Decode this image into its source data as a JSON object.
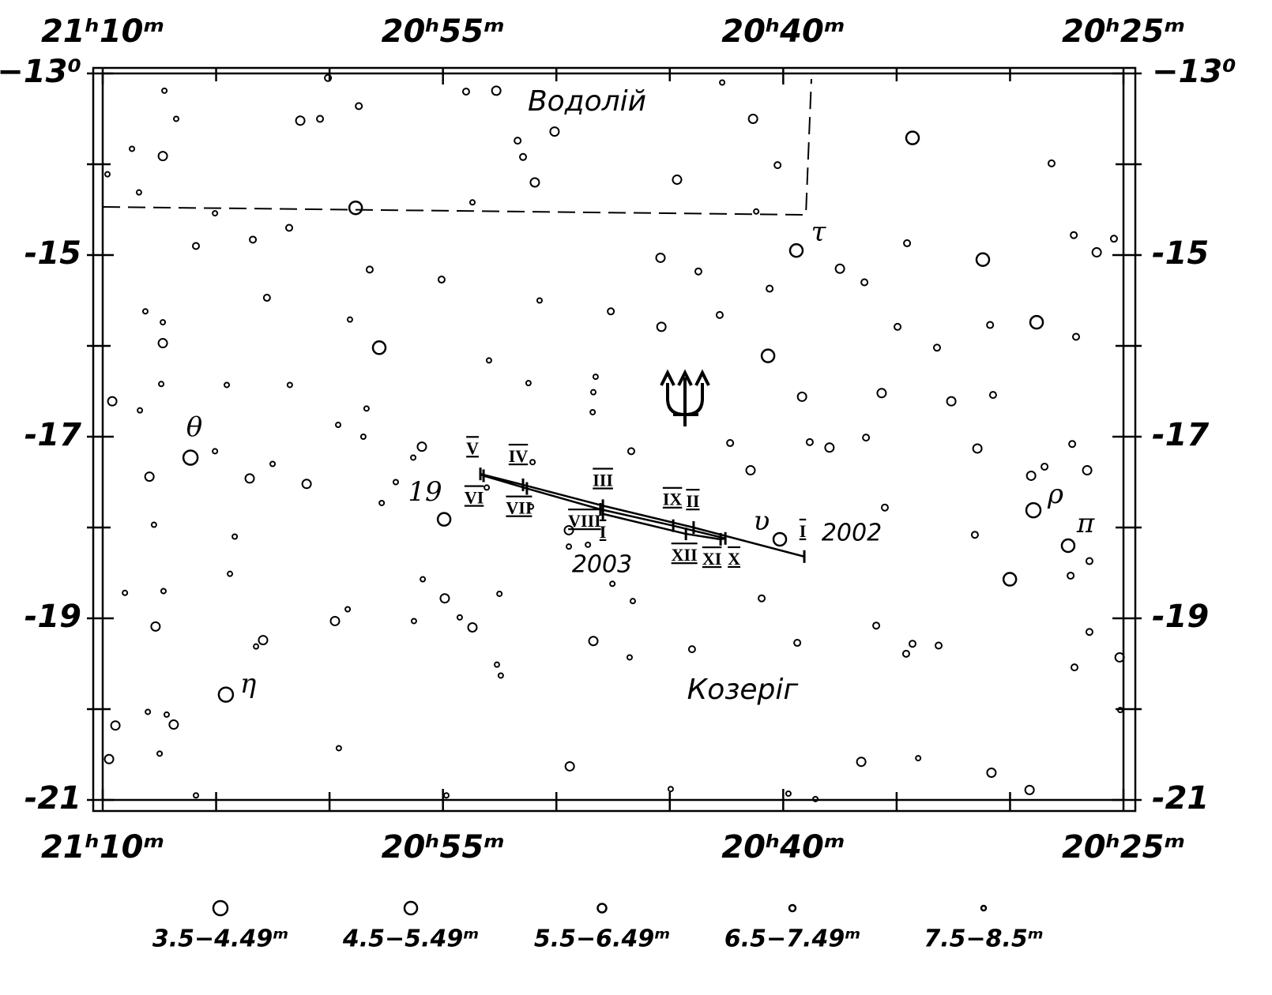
{
  "chart_data": {
    "type": "scatter",
    "xlim": [
      1270,
      1225
    ],
    "ylim": [
      -13,
      -21
    ],
    "xticks": [
      {
        "value": 1270,
        "label": "21ʰ10ᵐ"
      },
      {
        "value": 1255,
        "label": "20ʰ55ᵐ"
      },
      {
        "value": 1240,
        "label": "20ʰ40ᵐ"
      },
      {
        "value": 1225,
        "label": "20ʰ25ᵐ"
      }
    ],
    "xminorticks": [
      1265,
      1260,
      1250,
      1245,
      1235,
      1230
    ],
    "yticks": [
      {
        "value": -13,
        "label": "−13⁰"
      },
      -15,
      -17,
      -19,
      -21
    ],
    "yminorticks": [
      -14,
      -16,
      -18,
      -20
    ],
    "constellations": [
      "Водолій",
      "Козеріг"
    ],
    "star_labels": [
      "θ",
      "η",
      "τ",
      "υ",
      "ρ",
      "π",
      "19"
    ],
    "track_years": [
      "2002",
      "2003"
    ],
    "track": {
      "labels": [
        "I",
        "II",
        "III",
        "IV",
        "V",
        "VI",
        "VII",
        "VIII",
        "IX",
        "X",
        "XI",
        "XII",
        "I"
      ],
      "x": [
        1239.07,
        1243.95,
        1247.95,
        1251.47,
        1253.35,
        1253.21,
        1251.3,
        1248.06,
        1244.85,
        1242.55,
        1242.76,
        1244.29,
        1247.95
      ],
      "values": [
        -18.32,
        -18.0,
        -17.76,
        -17.53,
        -17.41,
        -17.43,
        -17.57,
        -17.8,
        -17.98,
        -18.12,
        -18.13,
        -18.07,
        -17.85
      ]
    },
    "series": [
      {
        "name": "3.5−4.49ᵐ",
        "color": "#000000",
        "x": [
          1266.13,
          1264.57,
          1228.97
        ],
        "values": [
          -17.23,
          -19.84,
          -17.81
        ]
      },
      {
        "name": "4.5−5.49ᵐ",
        "color": "#000000",
        "x": [
          1239.42,
          1227.44,
          1240.15,
          1254.95,
          1234.3,
          1231.2,
          1240.67,
          1257.81,
          1228.83,
          1230.01,
          1258.85
        ],
        "values": [
          -14.95,
          -18.2,
          -18.13,
          -17.91,
          -13.71,
          -15.05,
          -16.11,
          -16.02,
          -15.74,
          -18.57,
          -14.48
        ]
      },
      {
        "name": "5.5−6.49ᵐ",
        "color": "#000000",
        "x": [
          1261.01,
          1235.66,
          1249.45,
          1237.96,
          1245.41,
          1245.37,
          1269.58,
          1269.44,
          1267.35,
          1267.35,
          1267.67,
          1267.94,
          1263.52,
          1262.93,
          1259.76,
          1252.65,
          1261.29,
          1241.33,
          1254.92,
          1253.7,
          1248.37,
          1241.44,
          1239.17,
          1232.59,
          1231.44,
          1226.6,
          1229.07,
          1226.18,
          1236.56,
          1230.82,
          1229.14,
          1269.72,
          1266.87,
          1249.41,
          1244.68,
          1237.5,
          1225.17,
          1255.93,
          1250.08,
          1250.95
        ],
        "values": [
          -17.52,
          -16.52,
          -18.03,
          -17.12,
          -15.03,
          -15.79,
          -16.61,
          -20.18,
          -13.91,
          -15.97,
          -19.09,
          -17.44,
          -17.46,
          -19.24,
          -19.03,
          -13.19,
          -13.52,
          -13.5,
          -18.78,
          -19.1,
          -19.25,
          -17.37,
          -16.56,
          -16.61,
          -17.13,
          -17.37,
          -17.43,
          -14.97,
          -20.58,
          -20.7,
          -20.89,
          -20.55,
          -20.17,
          -20.63,
          -14.17,
          -15.15,
          -19.43,
          -17.11,
          -13.64,
          -14.2
        ]
      },
      {
        "name": "6.5−7.49ᵐ",
        "color": "#000000",
        "x": [
          1260.07,
          1260.42,
          1258.71,
          1253.98,
          1251.71,
          1251.47,
          1240.25,
          1265.89,
          1263.38,
          1261.78,
          1262.76,
          1258.23,
          1255.06,
          1247.6,
          1243.74,
          1242.8,
          1240.6,
          1234.54,
          1236.42,
          1234.96,
          1233.22,
          1230.88,
          1227.09,
          1228.17,
          1227.19,
          1225.42,
          1230.75,
          1236.35,
          1238.83,
          1242.34,
          1246.7,
          1235.52,
          1231.55,
          1227.26,
          1228.48,
          1226.5,
          1227.33,
          1226.5,
          1227.16,
          1235.9,
          1234.3,
          1234.58,
          1233.15,
          1240.95,
          1239.38,
          1244.02
        ],
        "values": [
          -13.05,
          -13.5,
          -13.36,
          -13.2,
          -13.74,
          -13.92,
          -14.01,
          -14.9,
          -14.83,
          -14.7,
          -15.47,
          -15.16,
          -15.27,
          -15.62,
          -15.18,
          -15.66,
          -15.37,
          -14.87,
          -15.3,
          -15.79,
          -16.02,
          -15.77,
          -15.9,
          -13.99,
          -14.78,
          -14.82,
          -16.54,
          -17.01,
          -17.06,
          -17.07,
          -17.16,
          -17.78,
          -18.08,
          -17.08,
          -17.33,
          -18.37,
          -18.53,
          -19.15,
          -19.54,
          -19.08,
          -19.28,
          -19.39,
          -19.3,
          -18.78,
          -19.27,
          -19.34
        ]
      },
      {
        "name": "7.5−8.5ᵐ",
        "color": "#000000",
        "x": [
          1246.77,
          1246.63,
          1247.53,
          1252.51,
          1252.62,
          1252.45,
          1254.26,
          1256.28,
          1255.89,
          1259.2,
          1259.59,
          1263.24,
          1264.39,
          1264.18,
          1267.74,
          1267.32,
          1269.02,
          1268.01,
          1267.18,
          1267.49,
          1268.36,
          1268.4,
          1268.71,
          1266.76,
          1267.28,
          1268.12,
          1267.35,
          1267.42,
          1265.05,
          1264.53,
          1265.05,
          1262.51,
          1261.75,
          1259.62,
          1258.51,
          1258.37,
          1259.1,
          1257.7,
          1257.08,
          1256.31,
          1252.97,
          1251.23,
          1250.74,
          1248.37,
          1248.4,
          1248.27,
          1251.05,
          1242.69,
          1241.19,
          1253.7,
          1244.96,
          1239.77,
          1238.58,
          1254.85,
          1265.89,
          1234.05,
          1225.14,
          1269.79,
          1253.07,
          1251.12,
          1249.45,
          1248.61
        ],
        "values": [
          -19.43,
          -18.81,
          -18.62,
          -18.73,
          -19.51,
          -19.63,
          -18.99,
          -19.03,
          -18.57,
          -18.9,
          -20.43,
          -19.31,
          -18.51,
          -18.1,
          -17.97,
          -18.7,
          -18.72,
          -20.03,
          -20.06,
          -20.49,
          -16.71,
          -14.31,
          -13.83,
          -13.5,
          -13.19,
          -15.62,
          -15.74,
          -16.42,
          -14.54,
          -16.43,
          -17.16,
          -17.3,
          -16.43,
          -16.87,
          -17.0,
          -16.69,
          -15.71,
          -17.73,
          -17.5,
          -17.23,
          -16.16,
          -16.41,
          -15.5,
          -16.51,
          -16.73,
          -16.34,
          -17.28,
          -13.1,
          -14.52,
          -14.42,
          -20.88,
          -20.93,
          -20.99,
          -20.95,
          -20.95,
          -20.54,
          -20.01,
          -14.11,
          -17.56,
          -17.77,
          -18.21,
          -18.19
        ]
      }
    ]
  }
}
